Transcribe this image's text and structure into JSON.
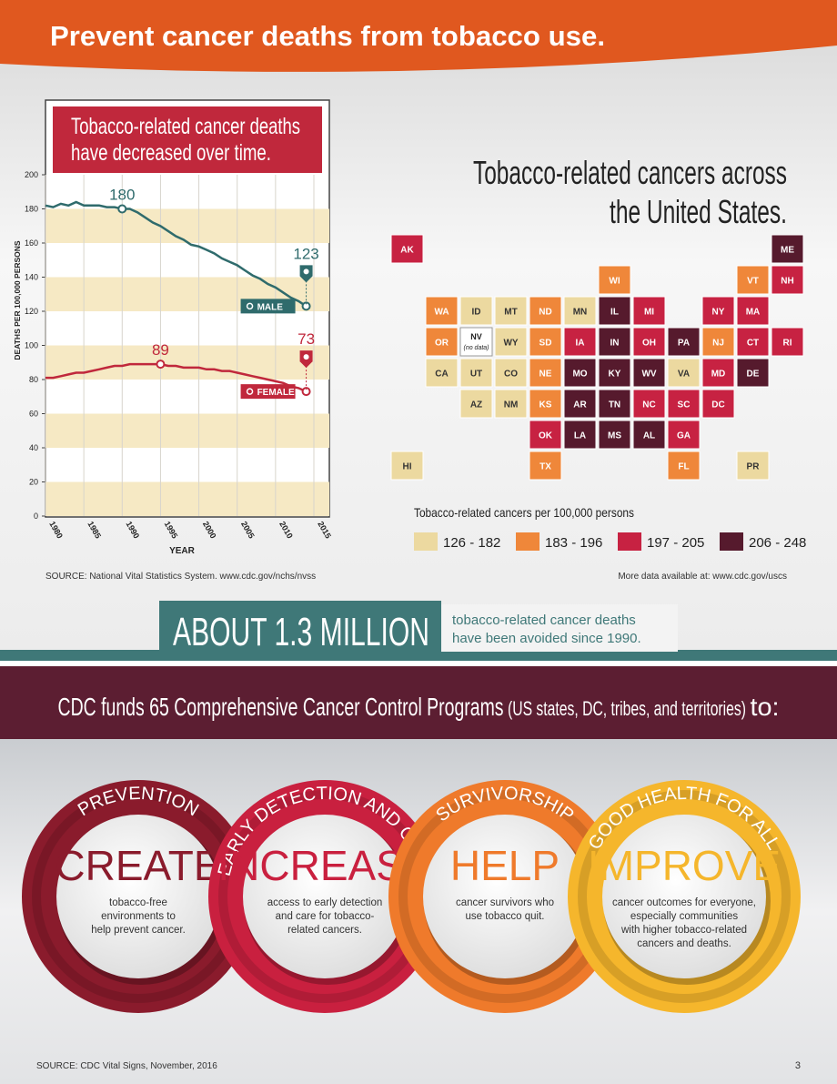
{
  "header": {
    "title": "Prevent cancer deaths from tobacco use."
  },
  "chart_data": {
    "type": "line",
    "title": [
      "Tobacco-related cancer deaths",
      "have decreased over time."
    ],
    "x_label": "YEAR",
    "y_label": "DEATHS PER 100,000 PERSONS",
    "x": [
      1980,
      1981,
      1982,
      1983,
      1984,
      1985,
      1986,
      1987,
      1988,
      1989,
      1990,
      1991,
      1992,
      1993,
      1994,
      1995,
      1996,
      1997,
      1998,
      1999,
      2000,
      2001,
      2002,
      2003,
      2004,
      2005,
      2006,
      2007,
      2008,
      2009,
      2010,
      2011,
      2012,
      2013,
      2014
    ],
    "series": [
      {
        "name": "MALE",
        "color": "#2f6b6c",
        "highlight_x": [
          1990,
          2014
        ],
        "values": [
          182,
          181,
          183,
          182,
          184,
          182,
          182,
          182,
          181,
          181,
          180,
          180,
          178,
          175,
          172,
          170,
          167,
          164,
          162,
          159,
          158,
          156,
          154,
          151,
          149,
          147,
          144,
          141,
          139,
          136,
          134,
          131,
          128,
          126,
          123
        ]
      },
      {
        "name": "FEMALE",
        "color": "#c0283c",
        "highlight_x": [
          1995,
          2014
        ],
        "values": [
          81,
          81,
          82,
          83,
          84,
          84,
          85,
          86,
          87,
          88,
          88,
          89,
          89,
          89,
          89,
          89,
          88,
          88,
          87,
          87,
          87,
          86,
          86,
          85,
          85,
          84,
          83,
          82,
          81,
          80,
          79,
          78,
          76,
          75,
          73
        ]
      }
    ],
    "xlim": [
      1980,
      2015
    ],
    "xticks": [
      1980,
      1985,
      1990,
      1995,
      2000,
      2005,
      2010,
      2015
    ],
    "ylim": [
      0,
      200
    ],
    "yticks": [
      0,
      20,
      40,
      60,
      80,
      100,
      120,
      140,
      160,
      180,
      200
    ],
    "grid": true,
    "source": "SOURCE: National Vital Statistics System. www.cdc.gov/nchs/nvss"
  },
  "map": {
    "title": [
      "Tobacco-related cancers across",
      "the United States."
    ],
    "legend_title": "Tobacco-related cancers per 100,000 persons",
    "items": [
      {
        "label": "126 - 182",
        "color": "#ecd9a0",
        "states": [
          "CA",
          "ID",
          "MT",
          "WY",
          "UT",
          "AZ",
          "CO",
          "NM",
          "MN",
          "VA",
          "HI",
          "PR"
        ]
      },
      {
        "label": "183 - 196",
        "color": "#ef873a",
        "states": [
          "WA",
          "OR",
          "ND",
          "SD",
          "NE",
          "KS",
          "TX",
          "WI",
          "FL",
          "VT",
          "NJ"
        ]
      },
      {
        "label": "197 - 205",
        "color": "#c72242",
        "states": [
          "OK",
          "IA",
          "MI",
          "OH",
          "GA",
          "SC",
          "NC",
          "NY",
          "NH",
          "MA",
          "RI",
          "CT",
          "MD",
          "DC",
          "AK"
        ]
      },
      {
        "label": "206 - 248",
        "color": "#561a2d",
        "states": [
          "MO",
          "AR",
          "LA",
          "IL",
          "IN",
          "KY",
          "TN",
          "MS",
          "AL",
          "WV",
          "PA",
          "ME",
          "DE"
        ]
      }
    ],
    "no_data": {
      "label": "NV",
      "note": "(no data)"
    },
    "more": "More data available at: www.cdc.gov/uscs"
  },
  "banner": {
    "headline": "ABOUT 1.3 MILLION",
    "lines": [
      "tobacco-related cancer deaths",
      "have been avoided since 1990."
    ]
  },
  "programs": {
    "heading": [
      "CDC funds 65 Comprehensive Cancer Control Programs",
      "(US states, DC, tribes, and territories)",
      "to:"
    ],
    "items": [
      {
        "arc": "PREVENTION",
        "word": "CREATE",
        "color": "#8a1b2c",
        "lines": [
          "tobacco-free",
          "environments to",
          "help prevent cancer."
        ]
      },
      {
        "arc": "EARLY DETECTION AND CARE",
        "word": "INCREASE",
        "color": "#c9203f",
        "lines": [
          "access to early detection",
          "and care for tobacco-",
          "related cancers."
        ]
      },
      {
        "arc": "SURVIVORSHIP",
        "word": "HELP",
        "color": "#ef7a2b",
        "lines": [
          "cancer survivors who",
          "use tobacco quit."
        ]
      },
      {
        "arc": "GOOD HEALTH FOR ALL",
        "word": "IMPROVE",
        "color": "#f5b62c",
        "lines": [
          "cancer outcomes for everyone,",
          "especially communities",
          "with higher tobacco-related",
          "cancers and deaths."
        ]
      }
    ]
  },
  "footer": {
    "source": "SOURCE: CDC Vital Signs, November, 2016",
    "page": "3"
  }
}
